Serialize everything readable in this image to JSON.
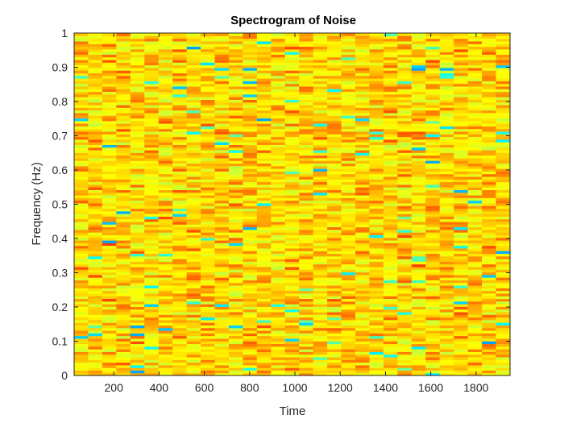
{
  "chart_data": {
    "type": "heatmap",
    "title": "Spectrogram of Noise",
    "xlabel": "Time",
    "ylabel": "Frequency (Hz)",
    "xlim": [
      25,
      1950
    ],
    "ylim": [
      0,
      1
    ],
    "xticks": [
      200,
      400,
      600,
      800,
      1000,
      1200,
      1400,
      1600,
      1800
    ],
    "yticks": [
      0,
      0.1,
      0.2,
      0.3,
      0.4,
      0.5,
      0.6,
      0.7,
      0.8,
      0.9,
      1
    ],
    "xtick_labels": [
      "200",
      "400",
      "600",
      "800",
      "1000",
      "1200",
      "1400",
      "1600",
      "1800"
    ],
    "ytick_labels": [
      "0",
      "0.1",
      "0.2",
      "0.3",
      "0.4",
      "0.5",
      "0.6",
      "0.7",
      "0.8",
      "0.9",
      "1"
    ],
    "time_bins": 31,
    "freq_bins": 129,
    "colormap": "jet",
    "grid": false,
    "legend": "none"
  }
}
